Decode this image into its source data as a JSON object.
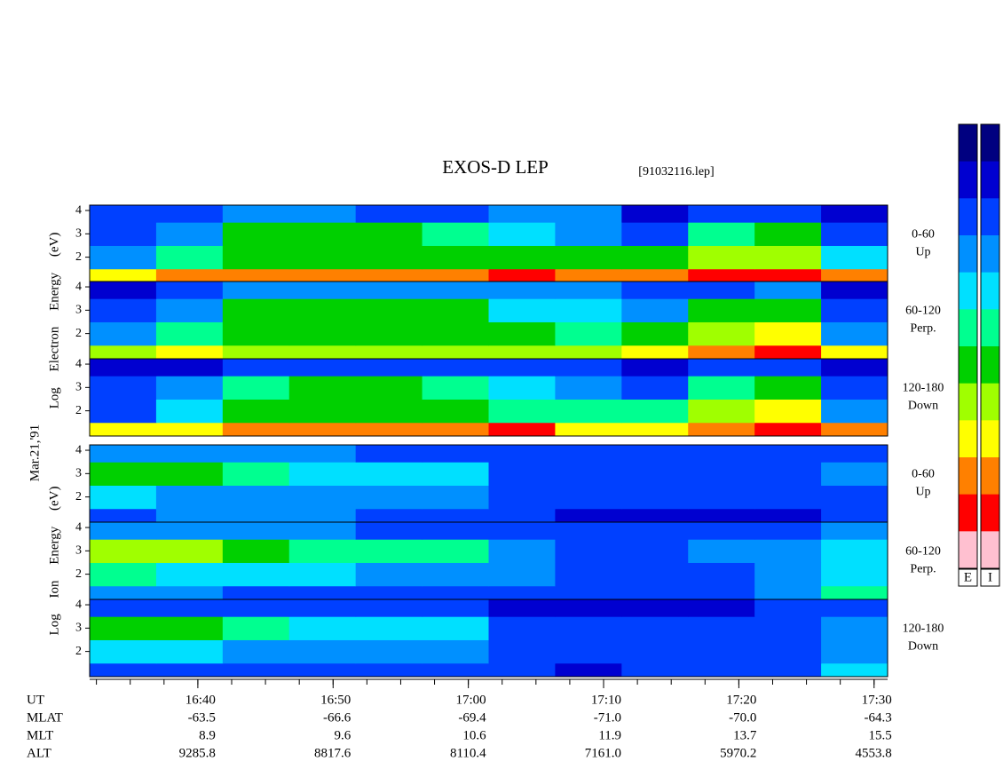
{
  "chart_data": {
    "type": "spectrogram",
    "title": "EXOS-D LEP",
    "subtitle": "[91032116.lep]",
    "date": "Mar.21,'91",
    "xlim": [
      "16:32",
      "17:31"
    ],
    "xticks": [
      "16:40",
      "16:50",
      "17:00",
      "17:10",
      "17:20",
      "17:30"
    ],
    "x_minor_interval_min": 2.5,
    "xrow_label": "UT",
    "ephemeris": [
      {
        "name": "MLAT",
        "values": [
          "-63.5",
          "-66.6",
          "-69.4",
          "-71.0",
          "-70.0",
          "-64.3"
        ]
      },
      {
        "name": "MLT",
        "values": [
          "8.9",
          "9.6",
          "10.6",
          "11.9",
          "13.7",
          "15.5"
        ]
      },
      {
        "name": "ALT",
        "values": [
          "9285.8",
          "8817.6",
          "8110.4",
          "7161.0",
          "5970.2",
          "4553.8"
        ]
      }
    ],
    "ylim": [
      0.92,
      4.23
    ],
    "yticks": [
      2,
      3,
      4
    ],
    "energy_bins": [
      0.92,
      1.5,
      2.5,
      3.5,
      4.23
    ],
    "colormap": [
      "#000080",
      "#0000d0",
      "#0040ff",
      "#0090ff",
      "#00e0ff",
      "#00ff90",
      "#00d000",
      "#a0ff00",
      "#ffff00",
      "#ff8000",
      "#ff0000",
      "#ffc0d0"
    ],
    "colorbars": [
      "E",
      "I"
    ],
    "groups": [
      {
        "label": "Log  Electron  Energy (eV)",
        "panels": [
          {
            "range": "0-60",
            "direction": "Up",
            "values": [
              [
                0.75,
                0.8,
                0.82,
                0.82,
                0.83,
                0.85,
                0.95,
                0.8,
                0.8,
                0.88,
                0.9,
                0.8
              ],
              [
                0.3,
                0.45,
                0.55,
                0.55,
                0.55,
                0.55,
                0.5,
                0.5,
                0.5,
                0.6,
                0.65,
                0.35
              ],
              [
                0.2,
                0.3,
                0.5,
                0.5,
                0.5,
                0.45,
                0.35,
                0.3,
                0.2,
                0.45,
                0.5,
                0.2
              ],
              [
                0.15,
                0.15,
                0.25,
                0.25,
                0.2,
                0.2,
                0.3,
                0.25,
                0.1,
                0.2,
                0.2,
                0.1
              ]
            ]
          },
          {
            "range": "60-120",
            "direction": "Perp.",
            "values": [
              [
                0.6,
                0.7,
                0.65,
                0.65,
                0.65,
                0.6,
                0.65,
                0.6,
                0.7,
                0.8,
                0.88,
                0.75
              ],
              [
                0.3,
                0.45,
                0.55,
                0.55,
                0.55,
                0.5,
                0.5,
                0.45,
                0.5,
                0.65,
                0.72,
                0.3
              ],
              [
                0.2,
                0.3,
                0.5,
                0.55,
                0.55,
                0.5,
                0.4,
                0.35,
                0.3,
                0.5,
                0.55,
                0.2
              ],
              [
                0.1,
                0.15,
                0.25,
                0.3,
                0.3,
                0.3,
                0.3,
                0.25,
                0.15,
                0.2,
                0.3,
                0.1
              ]
            ]
          },
          {
            "range": "120-180",
            "direction": "Down",
            "values": [
              [
                0.7,
                0.75,
                0.78,
                0.78,
                0.8,
                0.8,
                0.9,
                0.7,
                0.75,
                0.85,
                0.9,
                0.78
              ],
              [
                0.2,
                0.35,
                0.5,
                0.5,
                0.5,
                0.5,
                0.45,
                0.45,
                0.45,
                0.65,
                0.7,
                0.25
              ],
              [
                0.15,
                0.25,
                0.45,
                0.5,
                0.5,
                0.45,
                0.35,
                0.3,
                0.2,
                0.45,
                0.5,
                0.15
              ],
              [
                0.1,
                0.1,
                0.2,
                0.2,
                0.15,
                0.15,
                0.2,
                0.2,
                0.1,
                0.15,
                0.2,
                0.1
              ]
            ]
          }
        ]
      },
      {
        "label": "Log  Ion  Energy (eV)",
        "panels": [
          {
            "range": "0-60",
            "direction": "Up",
            "values": [
              [
                0.2,
                0.25,
                0.25,
                0.25,
                0.2,
                0.15,
                0.15,
                0.1,
                0.1,
                0.1,
                0.1,
                0.15
              ],
              [
                0.35,
                0.3,
                0.3,
                0.3,
                0.3,
                0.25,
                0.2,
                0.15,
                0.15,
                0.15,
                0.15,
                0.2
              ],
              [
                0.5,
                0.5,
                0.45,
                0.4,
                0.4,
                0.4,
                0.2,
                0.15,
                0.15,
                0.15,
                0.15,
                0.25
              ],
              [
                0.3,
                0.3,
                0.25,
                0.25,
                0.2,
                0.2,
                0.15,
                0.15,
                0.15,
                0.15,
                0.15,
                0.2
              ]
            ]
          },
          {
            "range": "60-120",
            "direction": "Perp.",
            "values": [
              [
                0.25,
                0.25,
                0.2,
                0.2,
                0.2,
                0.2,
                0.2,
                0.15,
                0.2,
                0.2,
                0.3,
                0.45
              ],
              [
                0.45,
                0.4,
                0.35,
                0.35,
                0.3,
                0.3,
                0.25,
                0.2,
                0.2,
                0.2,
                0.3,
                0.4
              ],
              [
                0.6,
                0.6,
                0.5,
                0.45,
                0.45,
                0.45,
                0.3,
                0.2,
                0.2,
                0.25,
                0.3,
                0.4
              ],
              [
                0.3,
                0.3,
                0.25,
                0.25,
                0.2,
                0.2,
                0.15,
                0.15,
                0.15,
                0.15,
                0.2,
                0.3
              ]
            ]
          },
          {
            "range": "120-180",
            "direction": "Down",
            "values": [
              [
                0.2,
                0.2,
                0.2,
                0.2,
                0.2,
                0.15,
                0.15,
                0.1,
                0.15,
                0.15,
                0.2,
                0.35
              ],
              [
                0.35,
                0.35,
                0.3,
                0.3,
                0.3,
                0.3,
                0.2,
                0.15,
                0.15,
                0.15,
                0.2,
                0.3
              ],
              [
                0.5,
                0.5,
                0.45,
                0.4,
                0.4,
                0.4,
                0.2,
                0.15,
                0.15,
                0.15,
                0.2,
                0.3
              ],
              [
                0.15,
                0.2,
                0.2,
                0.2,
                0.2,
                0.15,
                0.1,
                0.1,
                0.1,
                0.1,
                0.15,
                0.2
              ]
            ]
          }
        ]
      }
    ]
  }
}
